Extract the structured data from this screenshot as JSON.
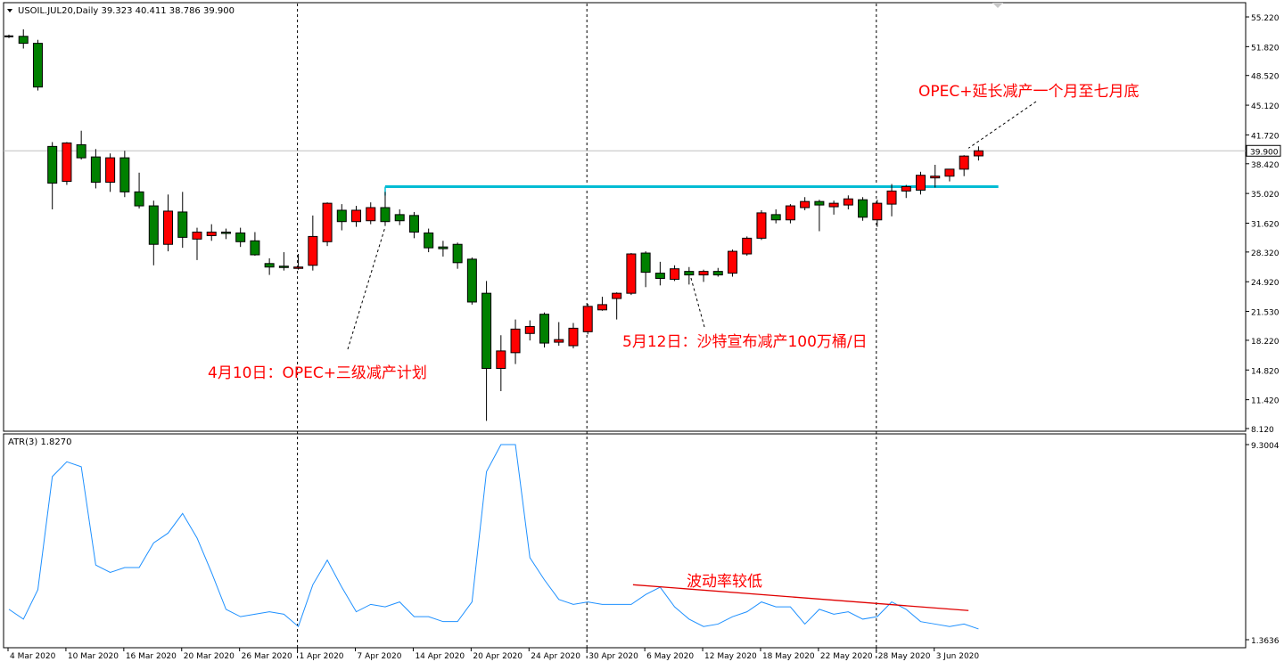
{
  "header": {
    "symbol_line": "USOIL.JUL20,Daily  39.323 40.411 38.786 39.900",
    "menu_arrow_icon": "triangle-down-icon"
  },
  "colors": {
    "up": "#ff0000",
    "down": "#008000",
    "candle_outline": "#000000",
    "atr_line": "#1e90ff",
    "resistance": "#00bcd4",
    "trend": "#e00000",
    "annotation": "#ff0000",
    "last_price_line": "#c0c0c0"
  },
  "chart_data": [
    {
      "type": "candlestick",
      "title": "USOIL.JUL20,Daily",
      "price_scale": {
        "min": 8.12,
        "max": 55.22,
        "ticks": [
          "55.220",
          "51.820",
          "48.520",
          "45.120",
          "41.720",
          "38.420",
          "35.020",
          "31.620",
          "28.320",
          "24.920",
          "21.530",
          "18.220",
          "14.820",
          "11.420",
          "8.120"
        ]
      },
      "last_price": "39.900",
      "x_labels": [
        "4 Mar 2020",
        "10 Mar 2020",
        "16 Mar 2020",
        "20 Mar 2020",
        "26 Mar 2020",
        "1 Apr 2020",
        "7 Apr 2020",
        "14 Apr 2020",
        "20 Apr 2020",
        "24 Apr 2020",
        "30 Apr 2020",
        "6 May 2020",
        "12 May 2020",
        "18 May 2020",
        "22 May 2020",
        "28 May 2020",
        "3 Jun 2020"
      ],
      "x_label_index": [
        0,
        4,
        8,
        12,
        16,
        20,
        24,
        28,
        32,
        36,
        40,
        44,
        48,
        52,
        56,
        60,
        64
      ],
      "candles": [
        [
          null,
          53.2,
          52.8,
          53.0,
          52.9
        ],
        [
          53.0,
          53.8,
          51.6,
          52.2,
          53.4
        ],
        [
          52.2,
          52.6,
          46.8,
          47.2,
          52.0
        ],
        [
          40.4,
          40.9,
          33.2,
          36.2,
          40.5
        ],
        [
          36.4,
          40.9,
          36.0,
          40.8,
          36.5
        ],
        [
          40.6,
          42.2,
          38.9,
          39.1,
          40.5
        ],
        [
          39.2,
          40.1,
          35.6,
          36.3,
          39.1
        ],
        [
          36.3,
          39.6,
          35.2,
          39.1,
          36.6
        ],
        [
          39.1,
          39.9,
          34.6,
          35.2,
          39.1
        ],
        [
          35.2,
          37.4,
          33.3,
          33.6,
          35.4
        ],
        [
          33.6,
          34.2,
          26.8,
          29.2,
          33.7
        ],
        [
          29.2,
          34.9,
          28.4,
          33.0,
          29.4
        ],
        [
          32.9,
          35.2,
          28.8,
          30.0,
          32.8
        ],
        [
          29.8,
          31.1,
          27.4,
          30.6,
          29.9
        ],
        [
          30.2,
          31.5,
          29.6,
          30.6,
          30.2
        ],
        [
          30.6,
          31.0,
          29.8,
          30.5,
          30.7
        ],
        [
          30.5,
          31.1,
          28.9,
          29.5,
          30.4
        ],
        [
          29.6,
          30.6,
          27.9,
          28.0,
          29.6
        ],
        [
          27.0,
          27.6,
          25.7,
          26.6,
          26.8
        ],
        [
          26.7,
          28.3,
          26.2,
          26.6,
          26.7
        ],
        [
          26.6,
          28.1,
          26.3,
          26.6,
          26.6
        ],
        [
          26.8,
          32.5,
          26.2,
          30.1,
          26.8
        ],
        [
          29.5,
          34.0,
          29.0,
          33.9,
          29.6
        ],
        [
          33.1,
          33.8,
          30.8,
          31.8,
          33.2
        ],
        [
          31.8,
          33.6,
          31.2,
          33.1,
          31.9
        ],
        [
          31.9,
          34.0,
          31.5,
          33.4,
          32.0
        ],
        [
          33.4,
          35.2,
          31.3,
          31.8,
          33.6
        ],
        [
          32.6,
          33.2,
          31.4,
          31.9,
          33.0
        ],
        [
          32.5,
          32.9,
          29.9,
          30.6,
          32.3
        ],
        [
          30.5,
          31.0,
          28.3,
          28.8,
          30.6
        ],
        [
          28.9,
          29.6,
          27.8,
          28.7,
          28.8
        ],
        [
          29.2,
          29.4,
          26.4,
          27.1,
          29.1
        ],
        [
          27.5,
          27.7,
          22.3,
          22.6,
          27.4
        ],
        [
          23.6,
          25.0,
          9.0,
          15.0,
          23.6
        ],
        [
          15.0,
          18.8,
          12.4,
          17.0,
          15.0
        ],
        [
          16.8,
          20.6,
          15.5,
          19.5,
          16.9
        ],
        [
          19.0,
          20.5,
          18.2,
          19.8,
          19.1
        ],
        [
          21.2,
          21.4,
          17.4,
          17.9,
          21.3
        ],
        [
          18.0,
          20.3,
          17.6,
          18.3,
          18.1
        ],
        [
          17.6,
          20.2,
          17.3,
          19.6,
          17.7
        ],
        [
          19.2,
          22.4,
          18.9,
          22.1,
          19.3
        ],
        [
          21.7,
          23.2,
          21.6,
          22.3,
          21.8
        ],
        [
          23.0,
          23.7,
          20.6,
          23.6,
          21.7
        ],
        [
          23.6,
          28.2,
          23.4,
          28.1,
          23.7
        ],
        [
          28.2,
          28.4,
          24.3,
          26.0,
          27.6
        ],
        [
          25.9,
          27.2,
          24.5,
          25.3,
          25.9
        ],
        [
          25.2,
          26.8,
          25.0,
          26.4,
          25.3
        ],
        [
          26.1,
          26.6,
          24.6,
          25.7,
          25.8
        ],
        [
          25.7,
          26.3,
          24.9,
          26.1,
          25.7
        ],
        [
          26.1,
          26.5,
          25.5,
          25.7,
          26.0
        ],
        [
          25.9,
          28.6,
          25.5,
          28.4,
          26.2
        ],
        [
          28.1,
          30.1,
          27.9,
          29.9,
          28.2
        ],
        [
          29.9,
          33.1,
          29.7,
          32.8,
          30.0
        ],
        [
          32.6,
          33.2,
          31.6,
          32.0,
          32.4
        ],
        [
          32.0,
          33.8,
          31.6,
          33.6,
          32.0
        ],
        [
          33.4,
          34.6,
          33.1,
          34.1,
          33.5
        ],
        [
          34.1,
          34.3,
          30.7,
          33.7,
          33.8
        ],
        [
          33.5,
          34.2,
          32.6,
          33.9,
          33.6
        ],
        [
          33.7,
          34.8,
          33.2,
          34.4,
          33.8
        ],
        [
          34.3,
          34.6,
          31.9,
          32.3,
          34.4
        ],
        [
          32.0,
          34.3,
          31.2,
          33.9,
          32.1
        ],
        [
          33.8,
          36.1,
          32.4,
          35.3,
          33.9
        ],
        [
          35.3,
          36.0,
          34.5,
          35.8,
          35.4
        ],
        [
          35.4,
          37.5,
          34.9,
          37.1,
          35.5
        ],
        [
          36.8,
          38.3,
          35.7,
          37.0,
          36.8
        ],
        [
          37.0,
          37.6,
          36.4,
          37.8,
          37.1
        ],
        [
          37.8,
          39.4,
          37.0,
          39.3,
          37.9
        ],
        [
          39.32,
          40.41,
          38.79,
          39.9,
          39.32
        ]
      ],
      "resistance_level": 35.8,
      "annotations": [
        "4月10日：OPEC+三级减产计划",
        "5月12日：沙特宣布减产100万桶/日",
        "OPEC+延长减产一个月至七月底"
      ]
    },
    {
      "type": "line",
      "title": "ATR(3) 1.8270",
      "value_scale": {
        "min": 1.3636,
        "max": 9.3004,
        "ticks": [
          "9.3004",
          "1.3636"
        ]
      },
      "values": [
        2.6,
        2.2,
        3.4,
        8.0,
        8.6,
        8.4,
        4.4,
        4.1,
        4.3,
        4.3,
        5.3,
        5.7,
        6.5,
        5.5,
        4.1,
        2.6,
        2.3,
        2.4,
        2.5,
        2.4,
        1.9,
        3.6,
        4.6,
        3.5,
        2.5,
        2.8,
        2.7,
        2.9,
        2.3,
        2.3,
        2.1,
        2.1,
        2.9,
        8.2,
        9.3,
        9.3,
        4.7,
        3.8,
        3.0,
        2.8,
        2.9,
        2.8,
        2.8,
        2.8,
        3.2,
        3.5,
        2.7,
        2.2,
        1.9,
        2.0,
        2.3,
        2.5,
        2.9,
        2.7,
        2.7,
        2.0,
        2.6,
        2.4,
        2.5,
        2.2,
        2.3,
        2.9,
        2.6,
        2.1,
        2.0,
        1.9,
        2.0,
        1.8
      ],
      "trend_label": "波动率较低"
    }
  ]
}
